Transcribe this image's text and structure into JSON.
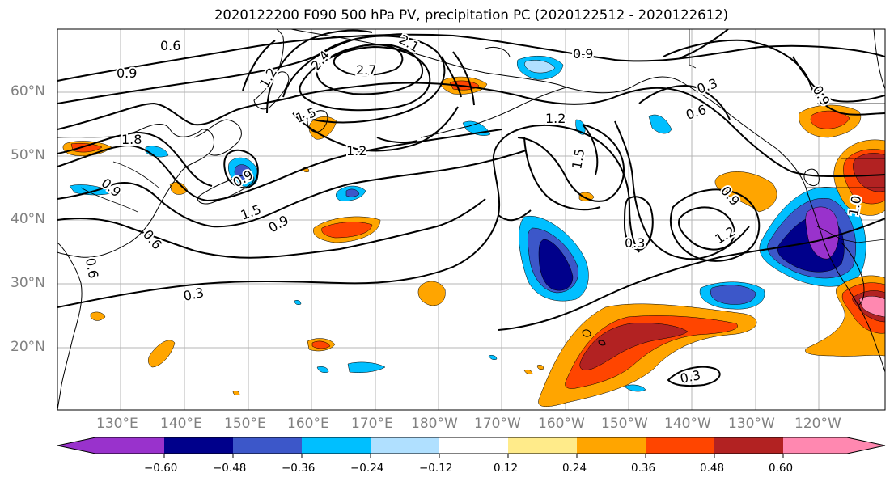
{
  "title": "2020122200 F090 500 hPa PV, precipitation PC (2020122512 - 2020122612)",
  "lat_labels": [
    "60°N",
    "50°N",
    "40°N",
    "30°N",
    "20°N"
  ],
  "lon_labels": [
    "130°E",
    "140°E",
    "150°E",
    "160°E",
    "170°E",
    "180°W",
    "170°W",
    "160°W",
    "150°W",
    "140°W",
    "130°W",
    "120°W"
  ],
  "contour_labels": [
    "0.6",
    "0.9",
    "2.1",
    "2.4",
    "2.7",
    "1.2",
    "1.5",
    "1.8",
    "0.9",
    "1.2",
    "1.5",
    "0.9",
    "0.3",
    "0.6",
    "0.9",
    "1.2",
    "1.5",
    "0.3",
    "0.6",
    "0.9",
    "0.3",
    "0.9",
    "1.2",
    "0.3",
    "0.6",
    "0.9",
    "1.0"
  ],
  "colorbar": {
    "ticks": [
      "−0.60",
      "−0.48",
      "−0.36",
      "−0.24",
      "−0.12",
      "0.12",
      "0.24",
      "0.36",
      "0.48",
      "0.60"
    ],
    "colors": [
      "#9932cc",
      "#00008b",
      "#3c57c9",
      "#00bfff",
      "#b0e0ff",
      "#ffffff",
      "#ffeb8a",
      "#ffa500",
      "#ff4500",
      "#b22222",
      "#ff88b0"
    ]
  }
}
